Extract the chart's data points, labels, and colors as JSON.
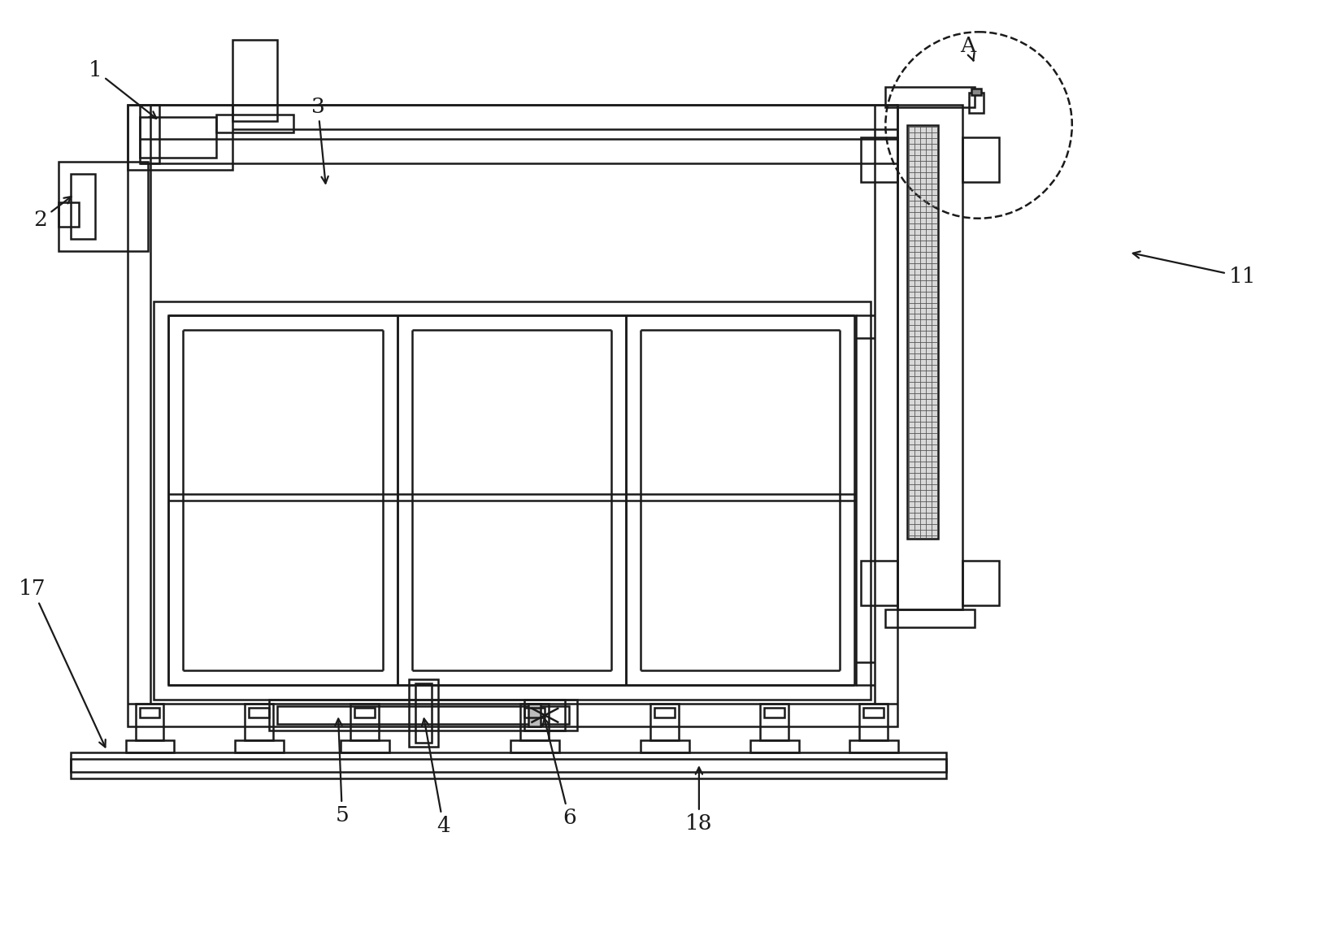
{
  "bg": "#ffffff",
  "lc": "#1a1a1a",
  "lw": 1.8,
  "tlw": 2.5
}
